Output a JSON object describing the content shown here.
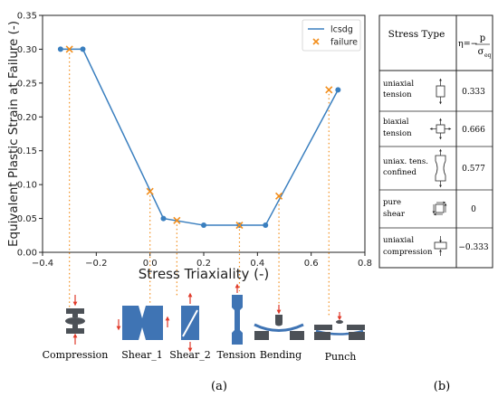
{
  "chart_data": {
    "type": "line",
    "xlabel": "Stress Triaxiality (-)",
    "ylabel": "Equivalent Plastic Strain at Failure (-)",
    "xlim": [
      -0.4,
      0.8
    ],
    "ylim": [
      0.0,
      0.35
    ],
    "xticks": [
      -0.4,
      -0.2,
      0.0,
      0.2,
      0.4,
      0.6,
      0.8
    ],
    "yticks": [
      0.0,
      0.05,
      0.1,
      0.15,
      0.2,
      0.25,
      0.3,
      0.35
    ],
    "xtick_labels": [
      "−0.4",
      "−0.2",
      "0.0",
      "0.2",
      "0.4",
      "0.6",
      "0.8"
    ],
    "ytick_labels": [
      "0.00",
      "0.05",
      "0.10",
      "0.15",
      "0.20",
      "0.25",
      "0.30",
      "0.35"
    ],
    "grid": false,
    "legend_placement": "top-right",
    "series": [
      {
        "name": "lcsdg",
        "kind": "line-with-markers",
        "color": "#3a7fbf",
        "x": [
          -0.333,
          -0.25,
          0.05,
          0.2,
          0.333,
          0.43,
          0.7
        ],
        "y": [
          0.3,
          0.3,
          0.05,
          0.04,
          0.04,
          0.04,
          0.24
        ]
      },
      {
        "name": "failure",
        "kind": "scatter-x",
        "color": "#f28e1c",
        "x": [
          -0.3,
          0.0,
          0.1,
          0.333,
          0.48,
          0.666
        ],
        "y": [
          0.3,
          0.09,
          0.047,
          0.04,
          0.083,
          0.24
        ]
      }
    ],
    "specimens": [
      "Compression",
      "Shear_1",
      "Shear_2",
      "Tension",
      "Bending",
      "Punch"
    ],
    "panel_label": "(a)"
  },
  "table": {
    "panel_label": "(b)",
    "header": {
      "col1": "Stress Type",
      "eta": "η=−",
      "p": "p",
      "sigma": "σ",
      "eq": "eq"
    },
    "rows": [
      {
        "type_line1": "uniaxial",
        "type_line2": "tension",
        "value": "0.333",
        "icon": "uniaxial-tension-icon"
      },
      {
        "type_line1": "biaxial",
        "type_line2": "tension",
        "value": "0.666",
        "icon": "biaxial-tension-icon"
      },
      {
        "type_line1": "uniax. tens.",
        "type_line2": "confined",
        "value": "0.577",
        "icon": "notched-specimen-icon"
      },
      {
        "type_line1": "pure",
        "type_line2": "shear",
        "value": "0",
        "icon": "pure-shear-icon"
      },
      {
        "type_line1": "uniaxial",
        "type_line2": "compression",
        "value": "−0.333",
        "icon": "uniaxial-compression-icon"
      }
    ]
  },
  "colors": {
    "line": "#3a7fbf",
    "failure": "#f28e1c",
    "specimen_blue": "#3f74b4",
    "specimen_gray": "#4c5157",
    "arrow_red": "#e03a2a"
  }
}
